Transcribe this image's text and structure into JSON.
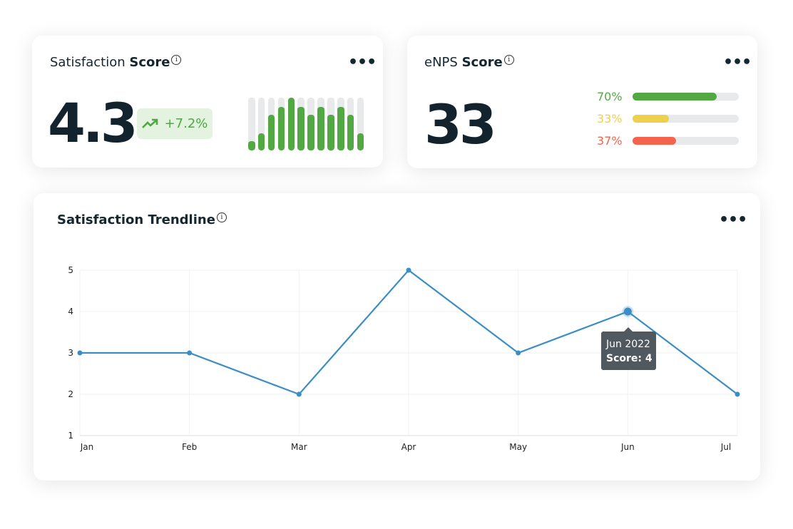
{
  "satisfaction": {
    "title_regular": "Satisfaction",
    "title_bold": "Score",
    "value": "4.3",
    "change": "+7.2%",
    "trend_icon": "trending-up-icon",
    "bar_levels": [
      0.17,
      0.33,
      0.67,
      0.83,
      1.0,
      0.83,
      0.67,
      0.83,
      0.67,
      0.83,
      0.67,
      0.33
    ]
  },
  "enps": {
    "title_regular": "eNPS",
    "title_bold": "Score",
    "value": "33",
    "rows": [
      {
        "label": "70%",
        "value": 70,
        "fill": 0.79,
        "color": "#52a944"
      },
      {
        "label": "33%",
        "value": 33,
        "fill": 0.34,
        "color": "#efd04a"
      },
      {
        "label": "37%",
        "value": 37,
        "fill": 0.41,
        "color": "#f4644c"
      }
    ]
  },
  "trend": {
    "title": "Satisfaction Trendline",
    "tooltip": {
      "line1": "Jun 2022",
      "line2": "Score: 4"
    }
  },
  "more_label": "•••",
  "info_label": "i",
  "chart_data": {
    "type": "line",
    "categories": [
      "Jan",
      "Feb",
      "Mar",
      "Apr",
      "May",
      "Jun",
      "Jul"
    ],
    "values": [
      3,
      3,
      2,
      5,
      3,
      4,
      2
    ],
    "ylim": [
      1,
      5
    ],
    "yticks": [
      "1",
      "2",
      "3",
      "4",
      "5"
    ],
    "grid": true,
    "color": "#3b8ec4",
    "highlight_index": 5
  }
}
